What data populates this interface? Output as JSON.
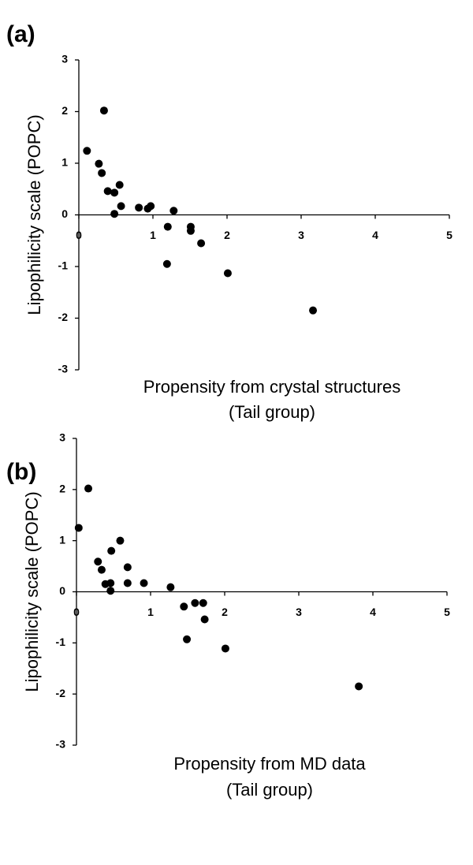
{
  "chart_data": [
    {
      "type": "scatter",
      "title": "(a)",
      "xlabel": [
        "Propensity from crystal structures",
        "(Tail group)"
      ],
      "ylabel": "Lipophilicity scale (POPC)",
      "x": [
        0.11,
        0.34,
        0.27,
        0.31,
        0.39,
        0.48,
        0.48,
        0.55,
        0.57,
        0.81,
        0.93,
        0.97,
        1.28,
        1.2,
        1.51,
        1.51,
        1.65,
        1.19,
        2.01,
        3.16
      ],
      "values": [
        1.24,
        2.02,
        0.99,
        0.81,
        0.46,
        0.43,
        0.02,
        0.58,
        0.17,
        0.14,
        0.12,
        0.17,
        0.08,
        -0.23,
        -0.23,
        -0.31,
        -0.55,
        -0.95,
        -1.13,
        -1.85
      ],
      "color": "#000000",
      "xlim": [
        0,
        5
      ],
      "xticks": [
        0,
        1,
        2,
        3,
        4,
        5
      ],
      "ylim": [
        -3,
        3
      ],
      "yticks": [
        -3,
        -2,
        -1,
        0,
        1,
        2,
        3
      ]
    },
    {
      "type": "scatter",
      "title": "(b)",
      "xlabel": [
        "Propensity from MD data",
        "(Tail group)"
      ],
      "ylabel": "Lipophilicity scale (POPC)",
      "x": [
        0.03,
        0.16,
        0.29,
        0.34,
        0.39,
        0.46,
        0.47,
        0.46,
        0.59,
        0.69,
        0.69,
        0.91,
        1.27,
        1.45,
        1.6,
        1.71,
        1.73,
        1.49,
        2.01,
        3.81
      ],
      "values": [
        1.25,
        2.02,
        0.59,
        0.43,
        0.15,
        0.17,
        0.8,
        0.02,
        1.0,
        0.48,
        0.17,
        0.17,
        0.09,
        -0.29,
        -0.22,
        -0.22,
        -0.54,
        -0.93,
        -1.11,
        -1.85
      ],
      "color": "#000000",
      "xlim": [
        0,
        5
      ],
      "xticks": [
        0,
        1,
        2,
        3,
        4,
        5
      ],
      "ylim": [
        -3,
        3
      ],
      "yticks": [
        -3,
        -2,
        -1,
        0,
        1,
        2,
        3
      ]
    }
  ]
}
